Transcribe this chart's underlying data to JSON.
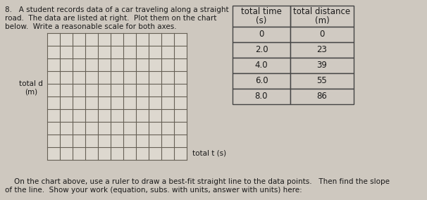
{
  "problem_text_line1": "8.   A student records data of a car traveling along a straight",
  "problem_text_line2": "road.  The data are listed at right.  Plot them on the chart",
  "problem_text_line3": "below.  Write a reasonable scale for both axes.",
  "ylabel": "total d\n(m)",
  "xlabel": "total t (s)",
  "footer_line1": "    On the chart above, use a ruler to draw a best-fit straight line to the data points.   Then find the slope",
  "footer_line2": "of the line.  Show your work (equation, subs. with units, answer with units) here:",
  "table_col0_header_line1": "total time",
  "table_col0_header_line2": "(s)",
  "table_col1_header_line1": "total distance",
  "table_col1_header_line2": "(m)",
  "table_data": [
    [
      "0",
      "0"
    ],
    [
      "2.0",
      "23"
    ],
    [
      "4.0",
      "39"
    ],
    [
      "6.0",
      "55"
    ],
    [
      "8.0",
      "86"
    ]
  ],
  "grid_rows": 10,
  "grid_cols": 11,
  "bg_color": "#cec8bf",
  "grid_bg_color": "#ddd8cf",
  "grid_line_color": "#666055",
  "text_color": "#1a1a1a",
  "table_border_color": "#444444",
  "font_size_text": 7.5,
  "font_size_table": 8.5,
  "font_size_label": 7.5
}
